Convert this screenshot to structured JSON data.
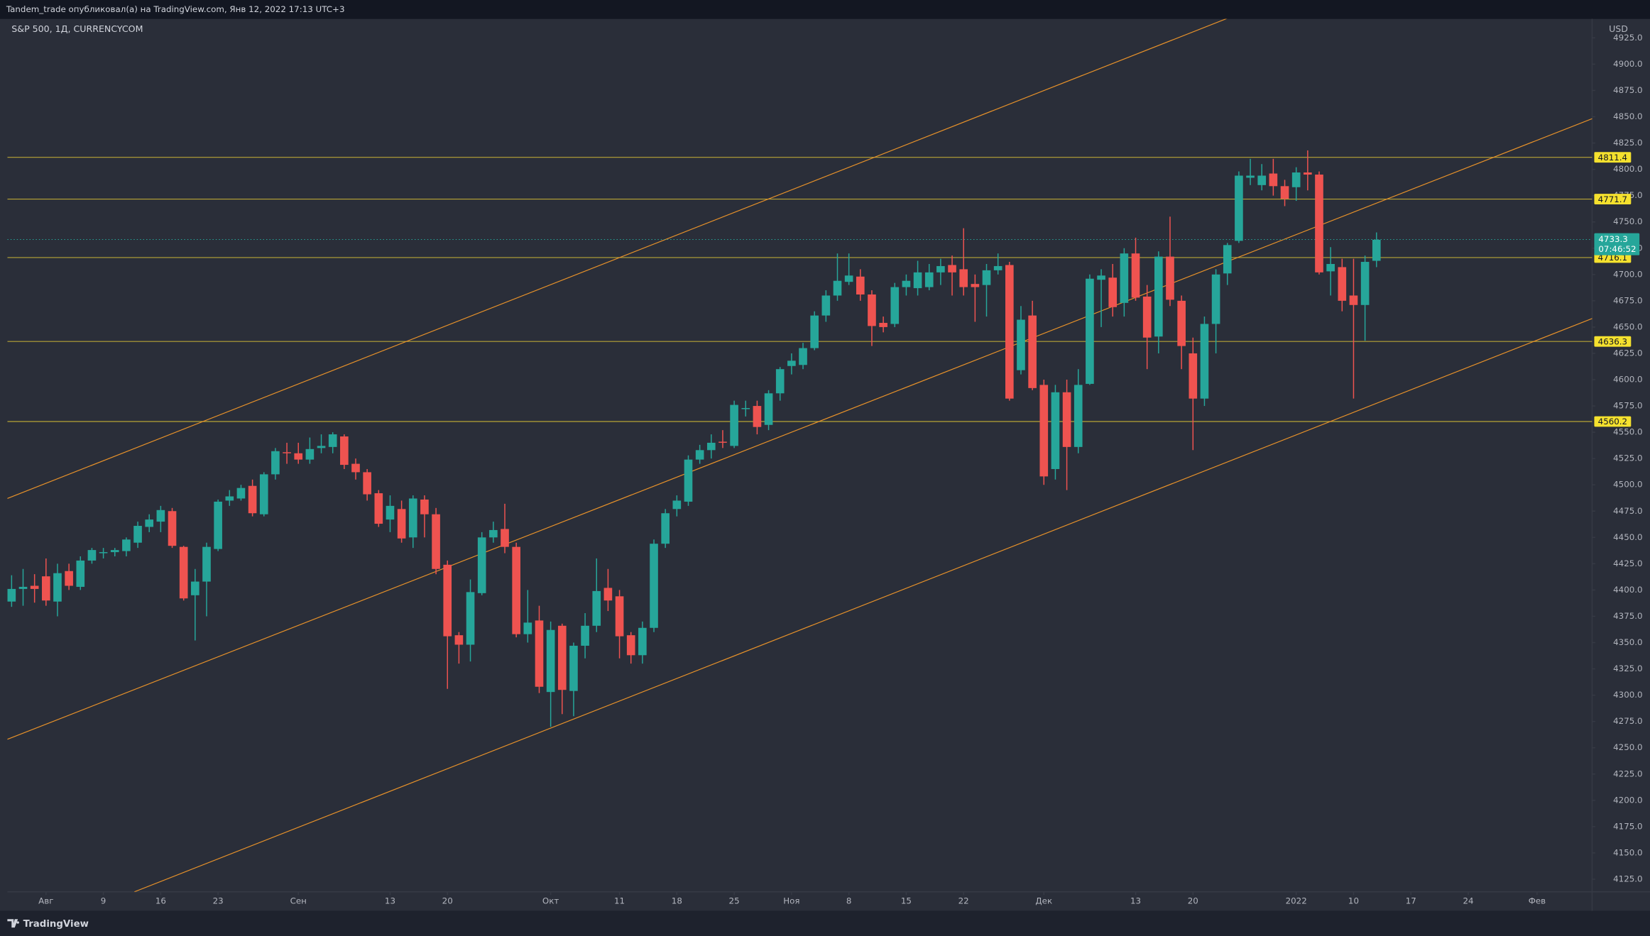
{
  "chart_data": {
    "type": "candlestick",
    "header": "Tandem_trade опубликовал(а) на TradingView.com, Янв 12, 2022 17:13 UTC+3",
    "title": "S&P 500, 1Д, CURRENCYCOM",
    "currency": "USD",
    "brand": "TradingView",
    "up_color": "#26a69a",
    "down_color": "#ef5350",
    "grid": false,
    "open": [
      4389,
      4401,
      4404,
      4413,
      4389,
      4418,
      4403,
      4428,
      4436,
      4436,
      4437,
      4445,
      4460,
      4465,
      4475,
      4441,
      4395,
      4408,
      4439,
      4485,
      4487,
      4499,
      4472,
      4510,
      4531,
      4530,
      4524,
      4535,
      4536,
      4546,
      4520,
      4512,
      4492,
      4467,
      4477,
      4450,
      4486,
      4472,
      4424,
      4357,
      4348,
      4397,
      4450,
      4458,
      4441,
      4358,
      4371,
      4303,
      4366,
      4304,
      4347,
      4366,
      4402,
      4394,
      4357,
      4338,
      4364,
      4444,
      4477,
      4484,
      4524,
      4533,
      4541,
      4537,
      4573,
      4575,
      4557,
      4587,
      4613,
      4614,
      4630,
      4661,
      4680,
      4693,
      4698,
      4681,
      4654,
      4653,
      4688,
      4687,
      4688,
      4702,
      4709,
      4705,
      4691,
      4690,
      4704,
      4709,
      4609,
      4661,
      4595,
      4515,
      4588,
      4536,
      4596,
      4695,
      4697,
      4673,
      4720,
      4679,
      4641,
      4717,
      4675,
      4625,
      4582,
      4653,
      4701,
      4732,
      4792,
      4785,
      4796,
      4784,
      4783,
      4797,
      4795,
      4703,
      4707,
      4680,
      4671,
      4713
    ],
    "high": [
      4414,
      4420,
      4415,
      4430,
      4425,
      4425,
      4432,
      4440,
      4440,
      4440,
      4450,
      4465,
      4472,
      4480,
      4478,
      4442,
      4420,
      4445,
      4486,
      4495,
      4500,
      4505,
      4512,
      4535,
      4540,
      4540,
      4545,
      4548,
      4550,
      4548,
      4525,
      4515,
      4495,
      4490,
      4485,
      4490,
      4490,
      4478,
      4428,
      4360,
      4410,
      4455,
      4465,
      4482,
      4445,
      4400,
      4385,
      4370,
      4368,
      4350,
      4378,
      4430,
      4420,
      4400,
      4360,
      4370,
      4448,
      4477,
      4490,
      4528,
      4538,
      4548,
      4552,
      4580,
      4580,
      4580,
      4590,
      4612,
      4625,
      4635,
      4665,
      4685,
      4720,
      4720,
      4705,
      4685,
      4660,
      4692,
      4700,
      4713,
      4710,
      4715,
      4718,
      4744,
      4700,
      4710,
      4720,
      4712,
      4670,
      4675,
      4600,
      4595,
      4600,
      4610,
      4700,
      4705,
      4710,
      4725,
      4735,
      4690,
      4722,
      4755,
      4680,
      4640,
      4660,
      4705,
      4730,
      4798,
      4810,
      4805,
      4810,
      4790,
      4802,
      4818,
      4798,
      4726,
      4715,
      4715,
      4718,
      4740
    ],
    "low": [
      4384,
      4385,
      4388,
      4385,
      4375,
      4400,
      4400,
      4425,
      4430,
      4432,
      4432,
      4440,
      4455,
      4455,
      4440,
      4390,
      4352,
      4375,
      4437,
      4480,
      4485,
      4470,
      4470,
      4505,
      4520,
      4520,
      4520,
      4530,
      4530,
      4515,
      4505,
      4485,
      4460,
      4455,
      4445,
      4440,
      4450,
      4415,
      4306,
      4330,
      4332,
      4395,
      4445,
      4435,
      4355,
      4350,
      4302,
      4270,
      4282,
      4280,
      4335,
      4360,
      4380,
      4335,
      4330,
      4330,
      4360,
      4440,
      4470,
      4480,
      4520,
      4525,
      4535,
      4535,
      4565,
      4548,
      4552,
      4580,
      4605,
      4610,
      4628,
      4655,
      4675,
      4690,
      4675,
      4632,
      4645,
      4650,
      4680,
      4680,
      4685,
      4690,
      4680,
      4680,
      4655,
      4660,
      4700,
      4580,
      4605,
      4590,
      4500,
      4505,
      4495,
      4530,
      4595,
      4650,
      4660,
      4660,
      4675,
      4610,
      4625,
      4670,
      4610,
      4533,
      4575,
      4625,
      4690,
      4730,
      4785,
      4780,
      4775,
      4765,
      4770,
      4780,
      4700,
      4680,
      4665,
      4582,
      4637,
      4707
    ],
    "close": [
      4401,
      4403,
      4401,
      4390,
      4416,
      4404,
      4428,
      4438,
      4436,
      4438,
      4448,
      4461,
      4467,
      4476,
      4442,
      4392,
      4408,
      4441,
      4484,
      4489,
      4497,
      4473,
      4510,
      4532,
      4530,
      4524,
      4534,
      4537,
      4548,
      4519,
      4512,
      4491,
      4463,
      4480,
      4449,
      4487,
      4472,
      4420,
      4356,
      4348,
      4398,
      4450,
      4457,
      4441,
      4358,
      4369,
      4308,
      4362,
      4305,
      4347,
      4366,
      4399,
      4390,
      4356,
      4338,
      4364,
      4444,
      4473,
      4485,
      4524,
      4533,
      4540,
      4540,
      4576,
      4573,
      4555,
      4587,
      4610,
      4618,
      4630,
      4661,
      4680,
      4694,
      4699,
      4681,
      4651,
      4650,
      4688,
      4694,
      4702,
      4702,
      4708,
      4702,
      4688,
      4688,
      4704,
      4708,
      4582,
      4657,
      4592,
      4508,
      4588,
      4536,
      4595,
      4696,
      4699,
      4669,
      4720,
      4678,
      4640,
      4717,
      4676,
      4632,
      4582,
      4653,
      4700,
      4728,
      4794,
      4794,
      4794,
      4784,
      4772,
      4797,
      4795,
      4702,
      4710,
      4675,
      4671,
      4712,
      4733
    ],
    "xlim": [
      -0.37,
      137.8
    ],
    "xticks": [
      {
        "value": 3,
        "label": "Авг"
      },
      {
        "value": 8,
        "label": "9"
      },
      {
        "value": 13,
        "label": "16"
      },
      {
        "value": 18,
        "label": "23"
      },
      {
        "value": 25,
        "label": "Сен"
      },
      {
        "value": 33,
        "label": "13"
      },
      {
        "value": 38,
        "label": "20"
      },
      {
        "value": 47,
        "label": "Окт"
      },
      {
        "value": 53,
        "label": "11"
      },
      {
        "value": 58,
        "label": "18"
      },
      {
        "value": 63,
        "label": "25"
      },
      {
        "value": 68,
        "label": "Ноя"
      },
      {
        "value": 73,
        "label": "8"
      },
      {
        "value": 78,
        "label": "15"
      },
      {
        "value": 83,
        "label": "22"
      },
      {
        "value": 90,
        "label": "Дек"
      },
      {
        "value": 98,
        "label": "13"
      },
      {
        "value": 103,
        "label": "20"
      },
      {
        "value": 112,
        "label": "2022"
      },
      {
        "value": 117,
        "label": "10"
      },
      {
        "value": 122,
        "label": "17"
      },
      {
        "value": 127,
        "label": "24"
      },
      {
        "value": 133,
        "label": "Фев"
      }
    ],
    "ylim": [
      4113,
      4943
    ],
    "yticks": [
      {
        "value": 4125,
        "label": "4125.0"
      },
      {
        "value": 4150,
        "label": "4150.0"
      },
      {
        "value": 4175,
        "label": "4175.0"
      },
      {
        "value": 4200,
        "label": "4200.0"
      },
      {
        "value": 4225,
        "label": "4225.0"
      },
      {
        "value": 4250,
        "label": "4250.0"
      },
      {
        "value": 4275,
        "label": "4275.0"
      },
      {
        "value": 4300,
        "label": "4300.0"
      },
      {
        "value": 4325,
        "label": "4325.0"
      },
      {
        "value": 4350,
        "label": "4350.0"
      },
      {
        "value": 4375,
        "label": "4375.0"
      },
      {
        "value": 4400,
        "label": "4400.0"
      },
      {
        "value": 4425,
        "label": "4425.0"
      },
      {
        "value": 4450,
        "label": "4450.0"
      },
      {
        "value": 4475,
        "label": "4475.0"
      },
      {
        "value": 4500,
        "label": "4500.0"
      },
      {
        "value": 4525,
        "label": "4525.0"
      },
      {
        "value": 4550,
        "label": "4550.0"
      },
      {
        "value": 4575,
        "label": "4575.0"
      },
      {
        "value": 4600,
        "label": "4600.0"
      },
      {
        "value": 4625,
        "label": "4625.0"
      },
      {
        "value": 4650,
        "label": "4650.0"
      },
      {
        "value": 4675,
        "label": "4675.0"
      },
      {
        "value": 4700,
        "label": "4700.0"
      },
      {
        "value": 4725,
        "label": "4725.0"
      },
      {
        "value": 4750,
        "label": "4750.0"
      },
      {
        "value": 4775,
        "label": "4775.0"
      },
      {
        "value": 4800,
        "label": "4800.0"
      },
      {
        "value": 4825,
        "label": "4825.0"
      },
      {
        "value": 4850,
        "label": "4850.0"
      },
      {
        "value": 4875,
        "label": "4875.0"
      },
      {
        "value": 4900,
        "label": "4900.0"
      },
      {
        "value": 4925,
        "label": "4925.0"
      }
    ],
    "levels": [
      4811.4,
      4771.7,
      4716.1,
      4636.3,
      4560.2
    ],
    "level_color": "#b8a436",
    "level_label_color": "#f5e12e",
    "trend_lines": [
      {
        "points": [
          [
            -0.37,
            4487
          ],
          [
            106.1,
            4944
          ]
        ]
      },
      {
        "points": [
          [
            -0.37,
            4258
          ],
          [
            138,
            4849
          ]
        ]
      },
      {
        "points": [
          [
            10.7,
            4113
          ],
          [
            138,
            4659
          ]
        ]
      }
    ],
    "trend_color": "#e8922a",
    "last_price": 4733.3,
    "countdown": "07:46:52",
    "last_price_color": "#26a69a"
  }
}
